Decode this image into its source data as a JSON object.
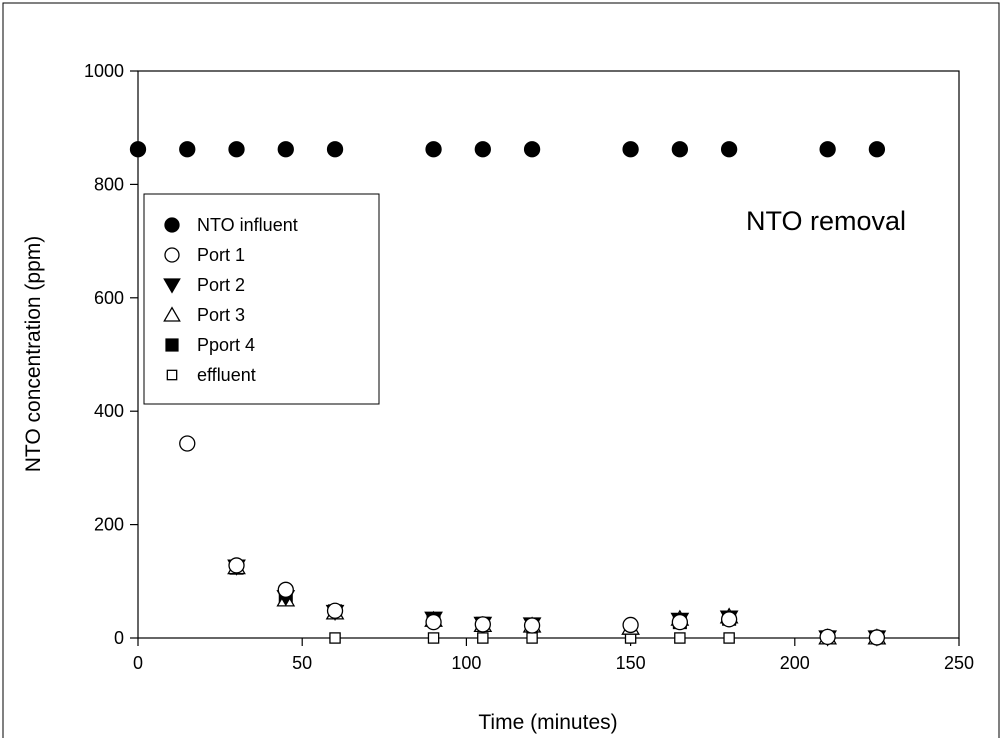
{
  "chart_data": {
    "type": "scatter",
    "title": "",
    "annotation": "NTO removal",
    "xlabel": "Time (minutes)",
    "ylabel": "NTO concentration (ppm)",
    "xlim": [
      0,
      250
    ],
    "ylim": [
      0,
      1000
    ],
    "xticks": [
      0,
      50,
      100,
      150,
      200,
      250
    ],
    "yticks": [
      0,
      200,
      400,
      600,
      800,
      1000
    ],
    "grid": false,
    "legend": "upper-left",
    "series": [
      {
        "name": "NTO influent",
        "marker": "filled-circle",
        "x": [
          0,
          15,
          30,
          45,
          60,
          90,
          105,
          120,
          150,
          165,
          180,
          210,
          225
        ],
        "y": [
          862,
          862,
          862,
          862,
          862,
          862,
          862,
          862,
          862,
          862,
          862,
          862,
          862
        ]
      },
      {
        "name": "Port 1",
        "marker": "open-circle",
        "x": [
          15,
          30,
          45,
          60,
          90,
          105,
          120,
          150,
          165,
          180,
          210,
          225
        ],
        "y": [
          343,
          128,
          85,
          48,
          28,
          24,
          22,
          23,
          28,
          33,
          2,
          1
        ]
      },
      {
        "name": "Port 2",
        "marker": "filled-triangle-down",
        "x": [
          30,
          45,
          60,
          90,
          105,
          120,
          165,
          180,
          210,
          225
        ],
        "y": [
          126,
          72,
          46,
          34,
          25,
          24,
          32,
          36,
          1,
          1
        ]
      },
      {
        "name": "Port 3",
        "marker": "open-triangle-up",
        "x": [
          30,
          45,
          60,
          90,
          105,
          120,
          150,
          165,
          180,
          210,
          225
        ],
        "y": [
          125,
          68,
          45,
          32,
          23,
          22,
          18,
          34,
          38,
          1,
          1
        ]
      },
      {
        "name": "Pport 4",
        "marker": "filled-square",
        "x": [
          30,
          45,
          60,
          90,
          105,
          120,
          165,
          180,
          210,
          225
        ],
        "y": [
          124,
          70,
          47,
          33,
          25,
          23,
          28,
          34,
          1,
          1
        ]
      },
      {
        "name": "effluent",
        "marker": "open-square",
        "x": [
          60,
          90,
          105,
          120,
          150,
          165,
          180,
          210,
          225
        ],
        "y": [
          0,
          0,
          0,
          0,
          0,
          0,
          0,
          0,
          0
        ]
      }
    ]
  }
}
